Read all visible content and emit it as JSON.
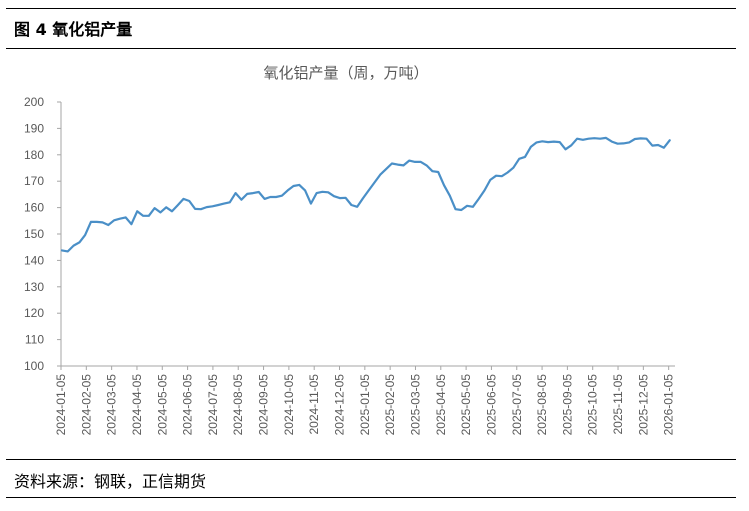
{
  "figure": {
    "number": "图 4",
    "title": "氧化铝产量",
    "source": "资料来源：钢联，正信期货"
  },
  "colors": {
    "series": "#4a8fc7",
    "axis": "#a6a6a6",
    "text": "#595959"
  },
  "chart_data": {
    "type": "line",
    "title": "氧化铝产量（周，万吨）",
    "xlabel": "",
    "ylabel": "",
    "ylim": [
      100,
      200
    ],
    "yticks": [
      100,
      110,
      120,
      130,
      140,
      150,
      160,
      170,
      180,
      190,
      200
    ],
    "xticks": [
      "2024-01-05",
      "2024-02-05",
      "2024-03-05",
      "2024-04-05",
      "2024-05-05",
      "2024-06-05",
      "2024-07-05",
      "2024-08-05",
      "2024-09-05",
      "2024-10-05",
      "2024-11-05",
      "2024-12-05",
      "2025-01-05",
      "2025-02-05",
      "2025-03-05",
      "2025-04-05",
      "2025-05-05",
      "2025-06-05",
      "2025-07-05",
      "2025-08-05",
      "2025-09-05",
      "2025-10-05",
      "2025-11-05",
      "2025-12-05",
      "2026-01-05"
    ],
    "grid": false,
    "legend": "none",
    "series": [
      {
        "values": [
          143.8,
          143.4,
          145.6,
          146.8,
          149.6,
          154.6,
          154.6,
          154.4,
          153.4,
          155.2,
          155.8,
          156.3,
          153.7,
          158.6,
          156.9,
          156.9,
          159.8,
          158.2,
          160.1,
          158.6,
          160.9,
          163.3,
          162.5,
          159.5,
          159.4,
          160.2,
          160.5,
          161.0,
          161.5,
          162.0,
          165.5,
          163.0,
          165.2,
          165.5,
          165.9,
          163.3,
          164.0,
          164.0,
          164.5,
          166.5,
          168.2,
          168.6,
          166.5,
          161.5,
          165.5,
          166.0,
          165.8,
          164.3,
          163.6,
          163.7,
          161.0,
          160.3,
          163.5,
          166.5,
          169.5,
          172.5,
          174.6,
          176.7,
          176.3,
          176.0,
          177.8,
          177.3,
          177.3,
          176.0,
          173.8,
          173.5,
          168.5,
          164.5,
          159.4,
          159.1,
          160.7,
          160.3,
          163.3,
          166.5,
          170.5,
          172.1,
          171.9,
          173.3,
          175.1,
          178.5,
          179.2,
          183.0,
          184.7,
          185.1,
          184.8,
          185.0,
          184.8,
          182.1,
          183.6,
          186.1,
          185.7,
          186.1,
          186.3,
          186.1,
          186.4,
          185.0,
          184.2,
          184.3,
          184.7,
          186.0,
          186.2,
          186.1,
          183.5,
          183.7,
          182.7,
          185.5
        ]
      }
    ]
  }
}
